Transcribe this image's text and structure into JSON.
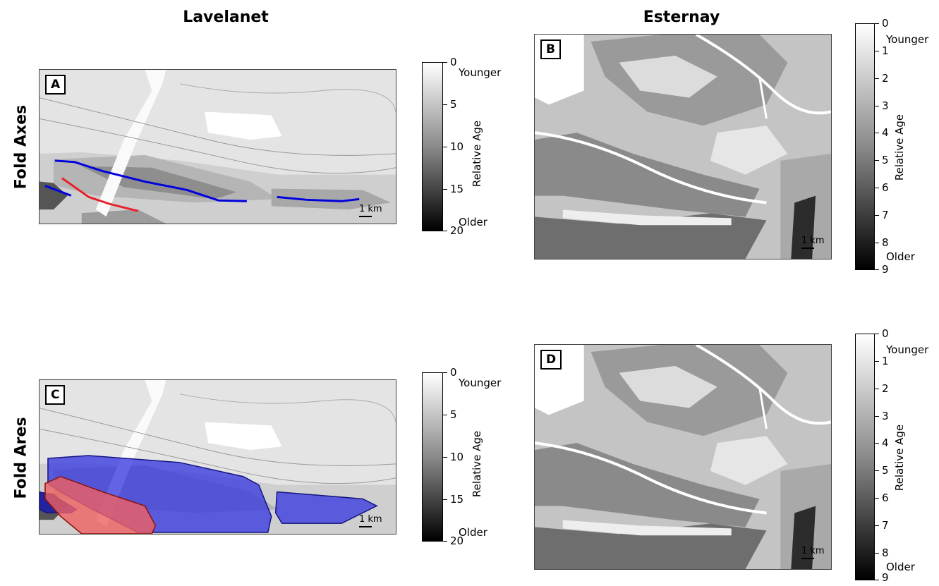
{
  "columns": [
    "Lavelanet",
    "Esternay"
  ],
  "rows": [
    "Fold Axes",
    "Fold Ares"
  ],
  "panels": [
    {
      "label": "A",
      "scale": "1 km"
    },
    {
      "label": "B",
      "scale": "1 km"
    },
    {
      "label": "C",
      "scale": "1 km"
    },
    {
      "label": "D",
      "scale": "1 km"
    }
  ],
  "colorbars": {
    "lavelanet": {
      "label": "Relative Age",
      "younger": "Younger",
      "older": "Older",
      "min": 0,
      "max": 20,
      "ticks": [
        "0",
        "5",
        "10",
        "15",
        "20"
      ]
    },
    "esternay": {
      "label": "Relative Age",
      "younger": "Younger",
      "older": "Older",
      "min": 0,
      "max": 9,
      "ticks": [
        "0",
        "1",
        "2",
        "3",
        "4",
        "5",
        "6",
        "7",
        "8",
        "9"
      ]
    }
  },
  "colors": {
    "fold_axis_blue": "#0000dd",
    "fold_axis_red": "#e8202a",
    "fold_area_blue": "#3838e0",
    "fold_area_red": "#f06060"
  },
  "chart_data": [
    {
      "type": "heatmap",
      "panel": "A",
      "title": "Lavelanet",
      "row": "Fold Axes",
      "colorbar": "Relative Age",
      "range": [
        0,
        20
      ],
      "overlay": "fold axes lines (blue, red)"
    },
    {
      "type": "heatmap",
      "panel": "B",
      "title": "Esternay",
      "row": "Fold Axes",
      "colorbar": "Relative Age",
      "range": [
        0,
        9
      ]
    },
    {
      "type": "heatmap",
      "panel": "C",
      "title": "Lavelanet",
      "row": "Fold Ares",
      "colorbar": "Relative Age",
      "range": [
        0,
        20
      ],
      "overlay": "fold area polygons (blue, red)"
    },
    {
      "type": "heatmap",
      "panel": "D",
      "title": "Esternay",
      "row": "Fold Ares",
      "colorbar": "Relative Age",
      "range": [
        0,
        9
      ]
    }
  ]
}
